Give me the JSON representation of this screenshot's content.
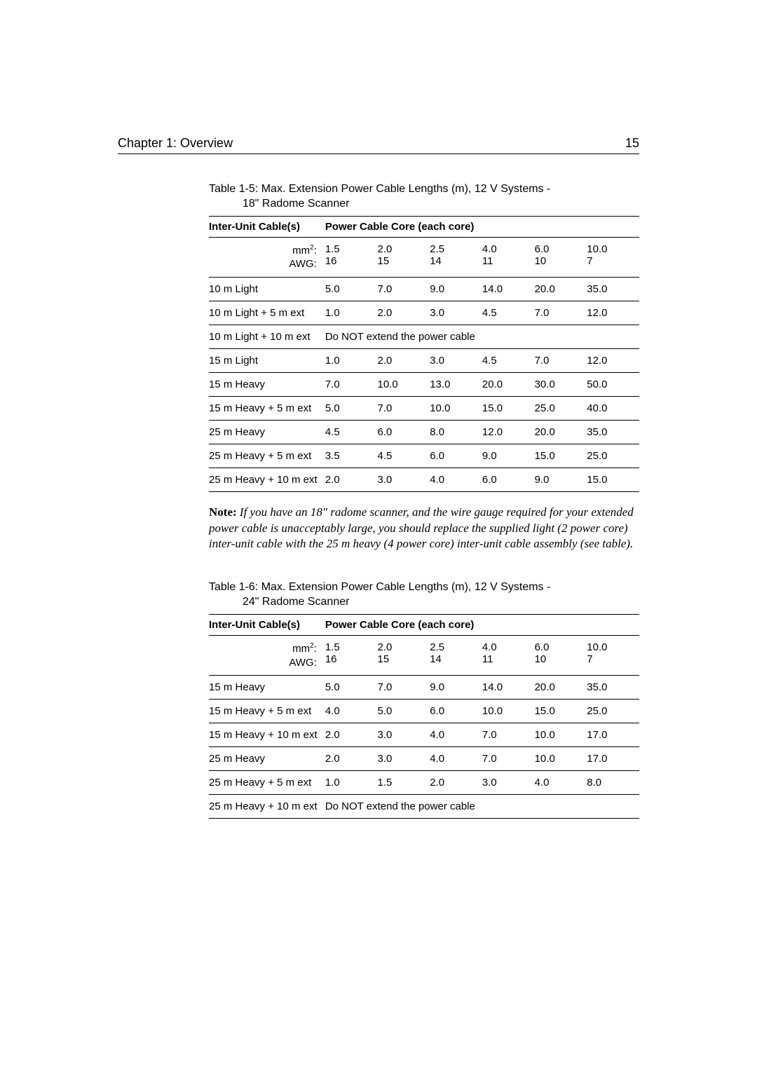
{
  "header": {
    "chapter": "Chapter 1: Overview",
    "page": "15"
  },
  "table1": {
    "caption_line1": "Table 1-5: Max. Extension Power Cable Lengths (m), 12 V Systems -",
    "caption_line2": "18\"  Radome Scanner",
    "header_left": "Inter-Unit Cable(s)",
    "header_right": "Power Cable Core (each core)",
    "unit_mm2": "mm",
    "unit_mm2_label": ":",
    "unit_awg": "AWG:",
    "cols_top": [
      "1.5",
      "2.0",
      "2.5",
      "4.0",
      "6.0",
      "10.0"
    ],
    "cols_bottom": [
      "16",
      "15",
      "14",
      "11",
      "10",
      "7"
    ],
    "rows": [
      {
        "label": "10 m Light",
        "vals": [
          "5.0",
          "7.0",
          "9.0",
          "14.0",
          "20.0",
          "35.0"
        ]
      },
      {
        "label": "10 m Light + 5 m ext",
        "vals": [
          "1.0",
          "2.0",
          "3.0",
          "4.5",
          "7.0",
          "12.0"
        ]
      },
      {
        "label": "10 m Light + 10 m ext",
        "span": "Do NOT extend the power cable"
      },
      {
        "label": "15 m Light",
        "vals": [
          "1.0",
          "2.0",
          "3.0",
          "4.5",
          "7.0",
          "12.0"
        ]
      },
      {
        "label": "15 m Heavy",
        "vals": [
          "7.0",
          "10.0",
          "13.0",
          "20.0",
          "30.0",
          "50.0"
        ]
      },
      {
        "label": "15 m Heavy + 5 m ext",
        "vals": [
          "5.0",
          "7.0",
          "10.0",
          "15.0",
          "25.0",
          "40.0"
        ]
      },
      {
        "label": "25 m Heavy",
        "vals": [
          "4.5",
          "6.0",
          "8.0",
          "12.0",
          "20.0",
          "35.0"
        ]
      },
      {
        "label": "25 m Heavy + 5 m ext",
        "vals": [
          "3.5",
          "4.5",
          "6.0",
          "9.0",
          "15.0",
          "25.0"
        ]
      },
      {
        "label": "25 m Heavy + 10 m ext",
        "vals": [
          "2.0",
          "3.0",
          "4.0",
          "6.0",
          "9.0",
          "15.0"
        ]
      }
    ]
  },
  "note": {
    "label": "Note: ",
    "text": "If you have an 18\" radome scanner, and the wire gauge required for your extended power cable is unacceptably large, you should replace the supplied light (2 power core) inter-unit cable with the 25 m heavy (4 power core) inter-unit cable assembly (see table)."
  },
  "table2": {
    "caption_line1": "Table 1-6: Max. Extension Power Cable Lengths (m), 12 V Systems -",
    "caption_line2": "24\"  Radome Scanner",
    "header_left": "Inter-Unit Cable(s)",
    "header_right": "Power Cable Core (each core)",
    "cols_top": [
      "1.5",
      "2.0",
      "2.5",
      "4.0",
      "6.0",
      "10.0"
    ],
    "cols_bottom": [
      "16",
      "15",
      "14",
      "11",
      "10",
      "7"
    ],
    "rows": [
      {
        "label": "15 m Heavy",
        "vals": [
          "5.0",
          "7.0",
          "9.0",
          "14.0",
          "20.0",
          "35.0"
        ]
      },
      {
        "label": "15 m Heavy + 5 m ext",
        "vals": [
          "4.0",
          "5.0",
          "6.0",
          "10.0",
          "15.0",
          "25.0"
        ]
      },
      {
        "label": "15 m Heavy + 10 m ext",
        "vals": [
          "2.0",
          "3.0",
          "4.0",
          "7.0",
          "10.0",
          "17.0"
        ]
      },
      {
        "label": "25 m Heavy",
        "vals": [
          "2.0",
          "3.0",
          "4.0",
          "7.0",
          "10.0",
          "17.0"
        ]
      },
      {
        "label": "25 m Heavy + 5 m ext",
        "vals": [
          "1.0",
          "1.5",
          "2.0",
          "3.0",
          "4.0",
          "8.0"
        ]
      },
      {
        "label": "25 m Heavy + 10 m ext",
        "span": "Do NOT extend the power cable"
      }
    ]
  }
}
